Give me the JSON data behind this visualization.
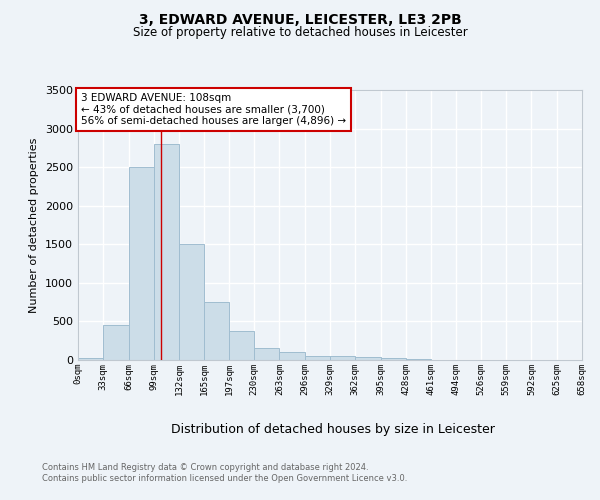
{
  "title1": "3, EDWARD AVENUE, LEICESTER, LE3 2PB",
  "title2": "Size of property relative to detached houses in Leicester",
  "xlabel": "Distribution of detached houses by size in Leicester",
  "ylabel": "Number of detached properties",
  "bins": [
    0,
    33,
    66,
    99,
    132,
    165,
    197,
    230,
    263,
    296,
    329,
    362,
    395,
    428,
    461,
    494,
    526,
    559,
    592,
    625,
    658
  ],
  "counts": [
    30,
    460,
    2500,
    2800,
    1500,
    750,
    375,
    160,
    100,
    55,
    55,
    40,
    20,
    10,
    5,
    2,
    0,
    0,
    0,
    0
  ],
  "bar_color": "#ccdde8",
  "bar_edge_color": "#a0bdd0",
  "red_line_x": 108,
  "annotation_line1": "3 EDWARD AVENUE: 108sqm",
  "annotation_line2": "← 43% of detached houses are smaller (3,700)",
  "annotation_line3": "56% of semi-detached houses are larger (4,896) →",
  "annotation_box_color": "#ffffff",
  "annotation_box_edge": "#cc0000",
  "footer1": "Contains HM Land Registry data © Crown copyright and database right 2024.",
  "footer2": "Contains public sector information licensed under the Open Government Licence v3.0.",
  "ylim": [
    0,
    3500
  ],
  "background_color": "#eef3f8",
  "plot_background": "#eef3f8",
  "grid_color": "#ffffff",
  "tick_labels": [
    "0sqm",
    "33sqm",
    "66sqm",
    "99sqm",
    "132sqm",
    "165sqm",
    "197sqm",
    "230sqm",
    "263sqm",
    "296sqm",
    "329sqm",
    "362sqm",
    "395sqm",
    "428sqm",
    "461sqm",
    "494sqm",
    "526sqm",
    "559sqm",
    "592sqm",
    "625sqm",
    "658sqm"
  ]
}
